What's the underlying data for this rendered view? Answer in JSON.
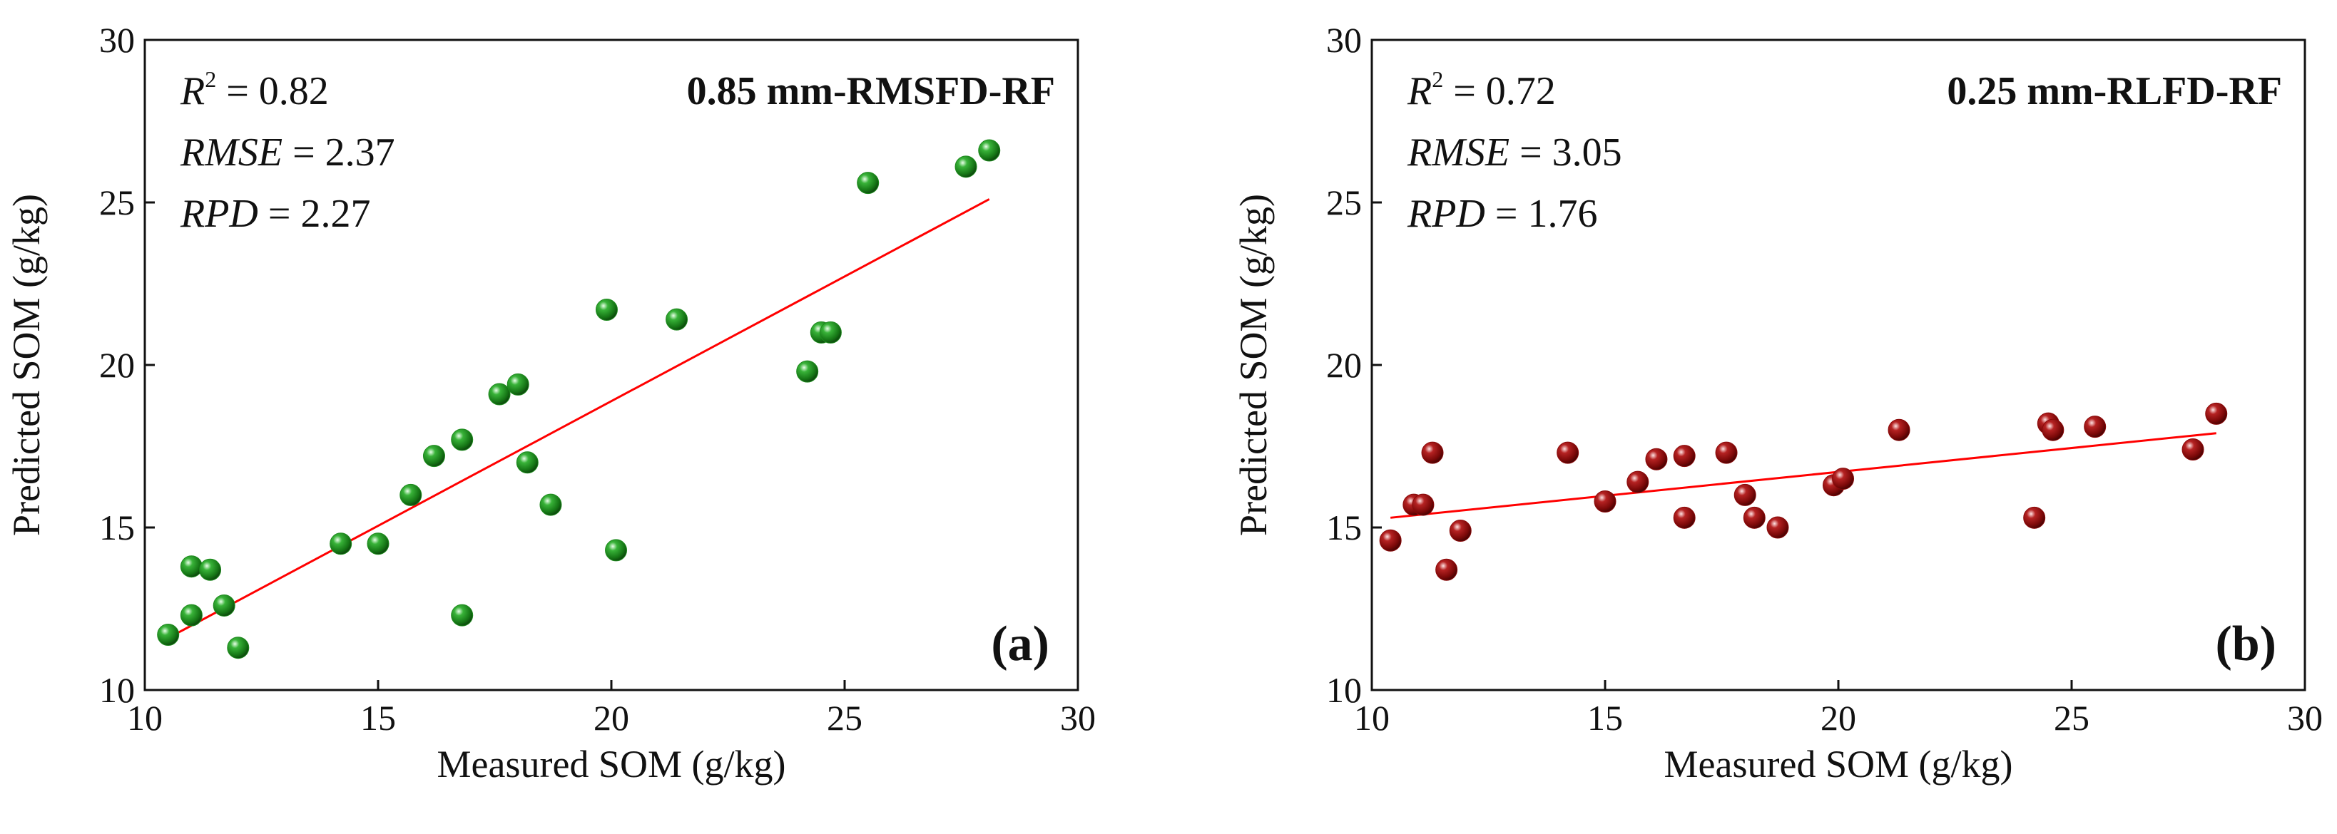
{
  "chart_data": [
    {
      "type": "scatter",
      "panel_label": "(a)",
      "model_label": "0.85 mm-RMSFD-RF",
      "xlabel": "Measured SOM (g/kg)",
      "ylabel": "Predicted SOM (g/kg)",
      "xlim": [
        10,
        30
      ],
      "ylim": [
        10,
        30
      ],
      "xticks": [
        10,
        15,
        20,
        25,
        30
      ],
      "yticks": [
        10,
        15,
        20,
        25,
        30
      ],
      "grid": false,
      "stats": {
        "r2_label": "R",
        "r2_sup": "2",
        "r2_value": " = 0.82",
        "rmse_label": "RMSE",
        "rmse_value": " = 2.37",
        "rpd_label": "RPD",
        "rpd_value": " = 2.27"
      },
      "point_color": "#1e8a1e",
      "points": [
        {
          "x": 10.5,
          "y": 11.7
        },
        {
          "x": 11.0,
          "y": 12.3
        },
        {
          "x": 11.0,
          "y": 13.8
        },
        {
          "x": 11.4,
          "y": 13.7
        },
        {
          "x": 11.7,
          "y": 12.6
        },
        {
          "x": 12.0,
          "y": 11.3
        },
        {
          "x": 14.2,
          "y": 14.5
        },
        {
          "x": 15.0,
          "y": 14.5
        },
        {
          "x": 15.7,
          "y": 16.0
        },
        {
          "x": 16.2,
          "y": 17.2
        },
        {
          "x": 16.8,
          "y": 17.7
        },
        {
          "x": 16.8,
          "y": 12.3
        },
        {
          "x": 17.6,
          "y": 19.1
        },
        {
          "x": 18.0,
          "y": 19.4
        },
        {
          "x": 18.2,
          "y": 17.0
        },
        {
          "x": 18.7,
          "y": 15.7
        },
        {
          "x": 19.9,
          "y": 21.7
        },
        {
          "x": 20.1,
          "y": 14.3
        },
        {
          "x": 21.4,
          "y": 21.4
        },
        {
          "x": 24.2,
          "y": 19.8
        },
        {
          "x": 24.5,
          "y": 21.0
        },
        {
          "x": 24.7,
          "y": 21.0
        },
        {
          "x": 25.5,
          "y": 25.6
        },
        {
          "x": 27.6,
          "y": 26.1
        },
        {
          "x": 28.1,
          "y": 26.6
        }
      ],
      "fit_line": {
        "color": "#ff0000",
        "x": [
          10.5,
          28.1
        ],
        "y": [
          11.6,
          25.1
        ]
      }
    },
    {
      "type": "scatter",
      "panel_label": "(b)",
      "model_label": "0.25 mm-RLFD-RF",
      "xlabel": "Measured SOM (g/kg)",
      "ylabel": "Predicted SOM (g/kg)",
      "xlim": [
        10,
        30
      ],
      "ylim": [
        10,
        30
      ],
      "xticks": [
        10,
        15,
        20,
        25,
        30
      ],
      "yticks": [
        10,
        15,
        20,
        25,
        30
      ],
      "grid": false,
      "stats": {
        "r2_label": "R",
        "r2_sup": "2",
        "r2_value": " = 0.72",
        "rmse_label": "RMSE",
        "rmse_value": " = 3.05",
        "rpd_label": "RPD",
        "rpd_value": " = 1.76"
      },
      "point_color": "#8b0a0a",
      "points": [
        {
          "x": 10.4,
          "y": 14.6
        },
        {
          "x": 10.9,
          "y": 15.7
        },
        {
          "x": 11.1,
          "y": 15.7
        },
        {
          "x": 11.3,
          "y": 17.3
        },
        {
          "x": 11.6,
          "y": 13.7
        },
        {
          "x": 11.9,
          "y": 14.9
        },
        {
          "x": 14.2,
          "y": 17.3
        },
        {
          "x": 15.0,
          "y": 15.8
        },
        {
          "x": 15.7,
          "y": 16.4
        },
        {
          "x": 16.1,
          "y": 17.1
        },
        {
          "x": 16.7,
          "y": 17.2
        },
        {
          "x": 16.7,
          "y": 15.3
        },
        {
          "x": 17.6,
          "y": 17.3
        },
        {
          "x": 18.0,
          "y": 16.0
        },
        {
          "x": 18.2,
          "y": 15.3
        },
        {
          "x": 18.7,
          "y": 15.0
        },
        {
          "x": 19.9,
          "y": 16.3
        },
        {
          "x": 20.1,
          "y": 16.5
        },
        {
          "x": 21.3,
          "y": 18.0
        },
        {
          "x": 24.2,
          "y": 15.3
        },
        {
          "x": 24.5,
          "y": 18.2
        },
        {
          "x": 24.6,
          "y": 18.0
        },
        {
          "x": 25.5,
          "y": 18.1
        },
        {
          "x": 27.6,
          "y": 17.4
        },
        {
          "x": 28.1,
          "y": 18.5
        }
      ],
      "fit_line": {
        "color": "#ff0000",
        "x": [
          10.4,
          28.1
        ],
        "y": [
          15.3,
          17.9
        ]
      }
    }
  ]
}
